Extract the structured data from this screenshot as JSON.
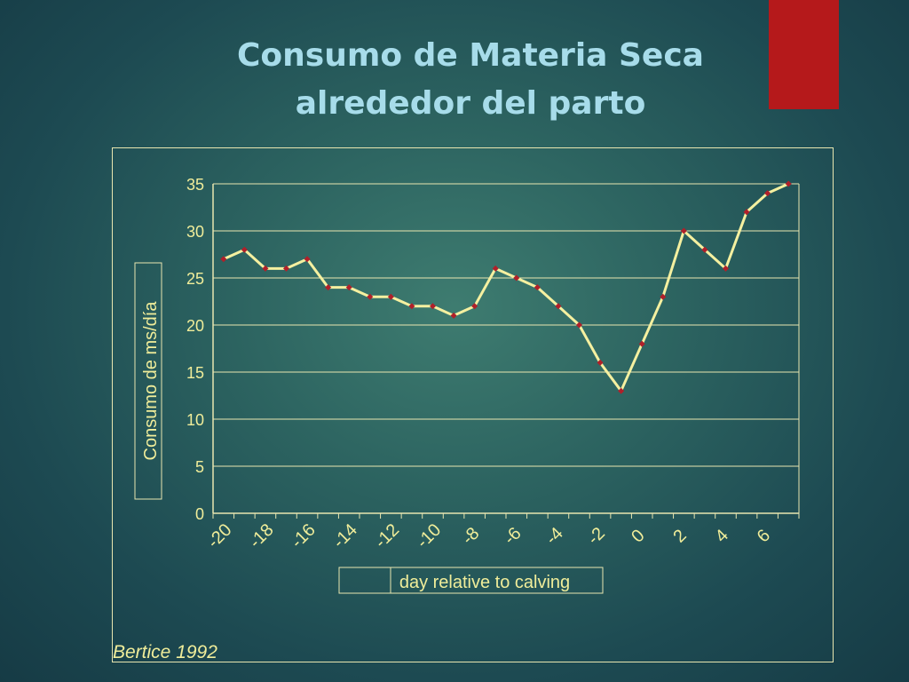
{
  "slide": {
    "title_line1": "Consumo de Materia Seca",
    "title_line2": "alrededor del parto",
    "credit": "Bertice 1992",
    "accent_color": "#b5191b",
    "title_color": "#a7dcea"
  },
  "chart_data": {
    "type": "line",
    "title": "",
    "xlabel": "day relative to calving",
    "ylabel": "Consumo de ms/día",
    "ylim": [
      0,
      35
    ],
    "yticks": [
      0,
      5,
      10,
      15,
      20,
      25,
      30,
      35
    ],
    "xtick_labels": [
      "-20",
      "-18",
      "-16",
      "-14",
      "-12",
      "-10",
      "-8",
      "-6",
      "-4",
      "-2",
      "0",
      "2",
      "4",
      "6"
    ],
    "x": [
      -20,
      -19,
      -18,
      -17,
      -16,
      -15,
      -14,
      -13,
      -12,
      -11,
      -10,
      -9,
      -8,
      -7,
      -6,
      -5,
      -4,
      -3,
      -2,
      -1,
      0,
      1,
      2,
      3,
      4,
      5,
      6,
      7
    ],
    "values": [
      27,
      28,
      26,
      26,
      27,
      24,
      24,
      23,
      23,
      22,
      22,
      21,
      22,
      26,
      25,
      24,
      22,
      20,
      16,
      13,
      18,
      23,
      30,
      28,
      26,
      32,
      34,
      35
    ],
    "grid": true,
    "line_color": "#f5f0a0",
    "marker_color": "#b0202a",
    "text_color": "#f0ed9a"
  }
}
